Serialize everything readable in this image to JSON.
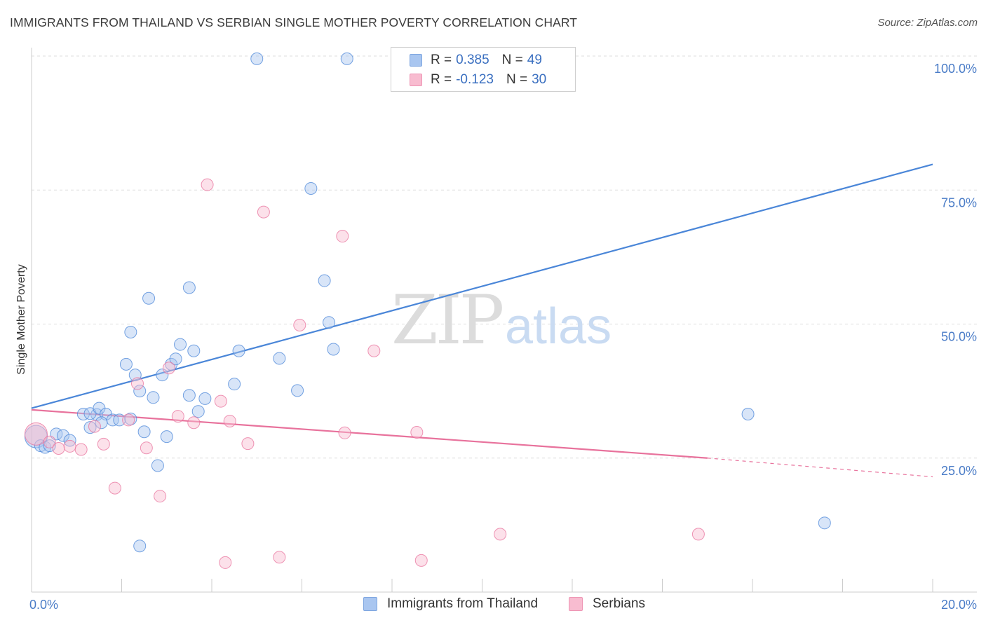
{
  "title": "IMMIGRANTS FROM THAILAND VS SERBIAN SINGLE MOTHER POVERTY CORRELATION CHART",
  "source": "Source: ZipAtlas.com",
  "watermark": {
    "zip": "ZIP",
    "atlas": "atlas"
  },
  "legend": {
    "rows": [
      {
        "r_label": "R =",
        "r_value": "0.385",
        "n_label": "N =",
        "n_value": "49",
        "color": "#a9c6f0",
        "border": "#7ea6e0"
      },
      {
        "r_label": "R =",
        "r_value": "-0.123",
        "n_label": "N =",
        "n_value": "30",
        "color": "#f8bcd0",
        "border": "#ee95b4"
      }
    ]
  },
  "bottom_legend": {
    "items": [
      {
        "label": "Immigrants from Thailand",
        "color": "#a9c6f0",
        "border": "#7ea6e0"
      },
      {
        "label": "Serbians",
        "color": "#f8bcd0",
        "border": "#ee95b4"
      }
    ]
  },
  "chart_data": {
    "type": "scatter",
    "title": "IMMIGRANTS FROM THAILAND VS SERBIAN SINGLE MOTHER POVERTY CORRELATION CHART",
    "xlabel": "",
    "ylabel": "Single Mother Poverty",
    "xlim": [
      0,
      20
    ],
    "ylim": [
      0,
      102
    ],
    "x_tick_labels": [
      "0.0%",
      "20.0%"
    ],
    "y_ticks": [
      25,
      50,
      75,
      100
    ],
    "y_tick_labels": [
      "25.0%",
      "50.0%",
      "75.0%",
      "100.0%"
    ],
    "grid": true,
    "legend_position": "top-center",
    "series": [
      {
        "name": "Immigrants from Thailand",
        "color": "#4a86d8",
        "fill": "#a9c6f0",
        "r": 0.385,
        "n": 49,
        "trend": {
          "x": [
            0,
            20
          ],
          "y": [
            34.3,
            79.8
          ]
        },
        "points": [
          [
            0.1,
            29.0
          ],
          [
            0.2,
            27.3
          ],
          [
            0.3,
            27.0
          ],
          [
            0.4,
            27.3
          ],
          [
            0.55,
            29.5
          ],
          [
            0.7,
            29.2
          ],
          [
            0.85,
            28.3
          ],
          [
            1.15,
            33.2
          ],
          [
            1.45,
            33.1
          ],
          [
            1.3,
            33.3
          ],
          [
            1.3,
            30.7
          ],
          [
            1.5,
            34.3
          ],
          [
            1.65,
            33.2
          ],
          [
            1.55,
            31.6
          ],
          [
            1.8,
            32.1
          ],
          [
            1.95,
            32.1
          ],
          [
            2.2,
            32.3
          ],
          [
            2.3,
            40.5
          ],
          [
            2.1,
            42.5
          ],
          [
            2.2,
            48.5
          ],
          [
            2.4,
            37.5
          ],
          [
            2.6,
            54.8
          ],
          [
            2.7,
            36.3
          ],
          [
            2.9,
            40.5
          ],
          [
            3.1,
            42.5
          ],
          [
            3.2,
            43.5
          ],
          [
            3.3,
            46.2
          ],
          [
            3.5,
            56.8
          ],
          [
            3.6,
            45.0
          ],
          [
            3.5,
            36.7
          ],
          [
            3.7,
            33.7
          ],
          [
            3.85,
            36.1
          ],
          [
            4.5,
            38.8
          ],
          [
            4.6,
            45.0
          ],
          [
            5.0,
            99.5
          ],
          [
            5.5,
            43.6
          ],
          [
            5.9,
            37.6
          ],
          [
            6.2,
            75.3
          ],
          [
            6.5,
            58.1
          ],
          [
            6.6,
            50.3
          ],
          [
            6.7,
            45.3
          ],
          [
            7.0,
            99.5
          ],
          [
            9.1,
            99.5
          ],
          [
            3.0,
            29.0
          ],
          [
            2.8,
            23.6
          ],
          [
            2.4,
            8.6
          ],
          [
            15.9,
            33.2
          ],
          [
            17.6,
            12.9
          ],
          [
            2.5,
            29.9
          ]
        ]
      },
      {
        "name": "Serbians",
        "color": "#e8729c",
        "fill": "#f8bcd0",
        "r": -0.123,
        "n": 30,
        "trend": {
          "x": [
            0,
            15
          ],
          "y": [
            34.0,
            25.0
          ]
        },
        "trend_dashed": {
          "x": [
            15,
            20
          ],
          "y": [
            25.0,
            21.5
          ]
        },
        "points": [
          [
            0.1,
            29.5
          ],
          [
            0.4,
            28.0
          ],
          [
            0.6,
            26.8
          ],
          [
            0.85,
            27.2
          ],
          [
            1.1,
            26.6
          ],
          [
            1.4,
            30.9
          ],
          [
            1.6,
            27.6
          ],
          [
            1.85,
            19.4
          ],
          [
            2.15,
            32.1
          ],
          [
            2.35,
            38.9
          ],
          [
            2.55,
            26.9
          ],
          [
            2.85,
            17.9
          ],
          [
            3.05,
            41.8
          ],
          [
            3.25,
            32.8
          ],
          [
            3.6,
            31.6
          ],
          [
            3.9,
            76.0
          ],
          [
            4.2,
            35.6
          ],
          [
            4.4,
            31.9
          ],
          [
            4.8,
            27.7
          ],
          [
            5.15,
            70.9
          ],
          [
            5.5,
            6.5
          ],
          [
            4.3,
            5.5
          ],
          [
            5.95,
            49.8
          ],
          [
            6.9,
            66.4
          ],
          [
            6.95,
            29.7
          ],
          [
            7.6,
            45.0
          ],
          [
            8.55,
            29.8
          ],
          [
            8.65,
            5.9
          ],
          [
            10.4,
            10.8
          ],
          [
            14.8,
            10.8
          ]
        ]
      }
    ]
  }
}
